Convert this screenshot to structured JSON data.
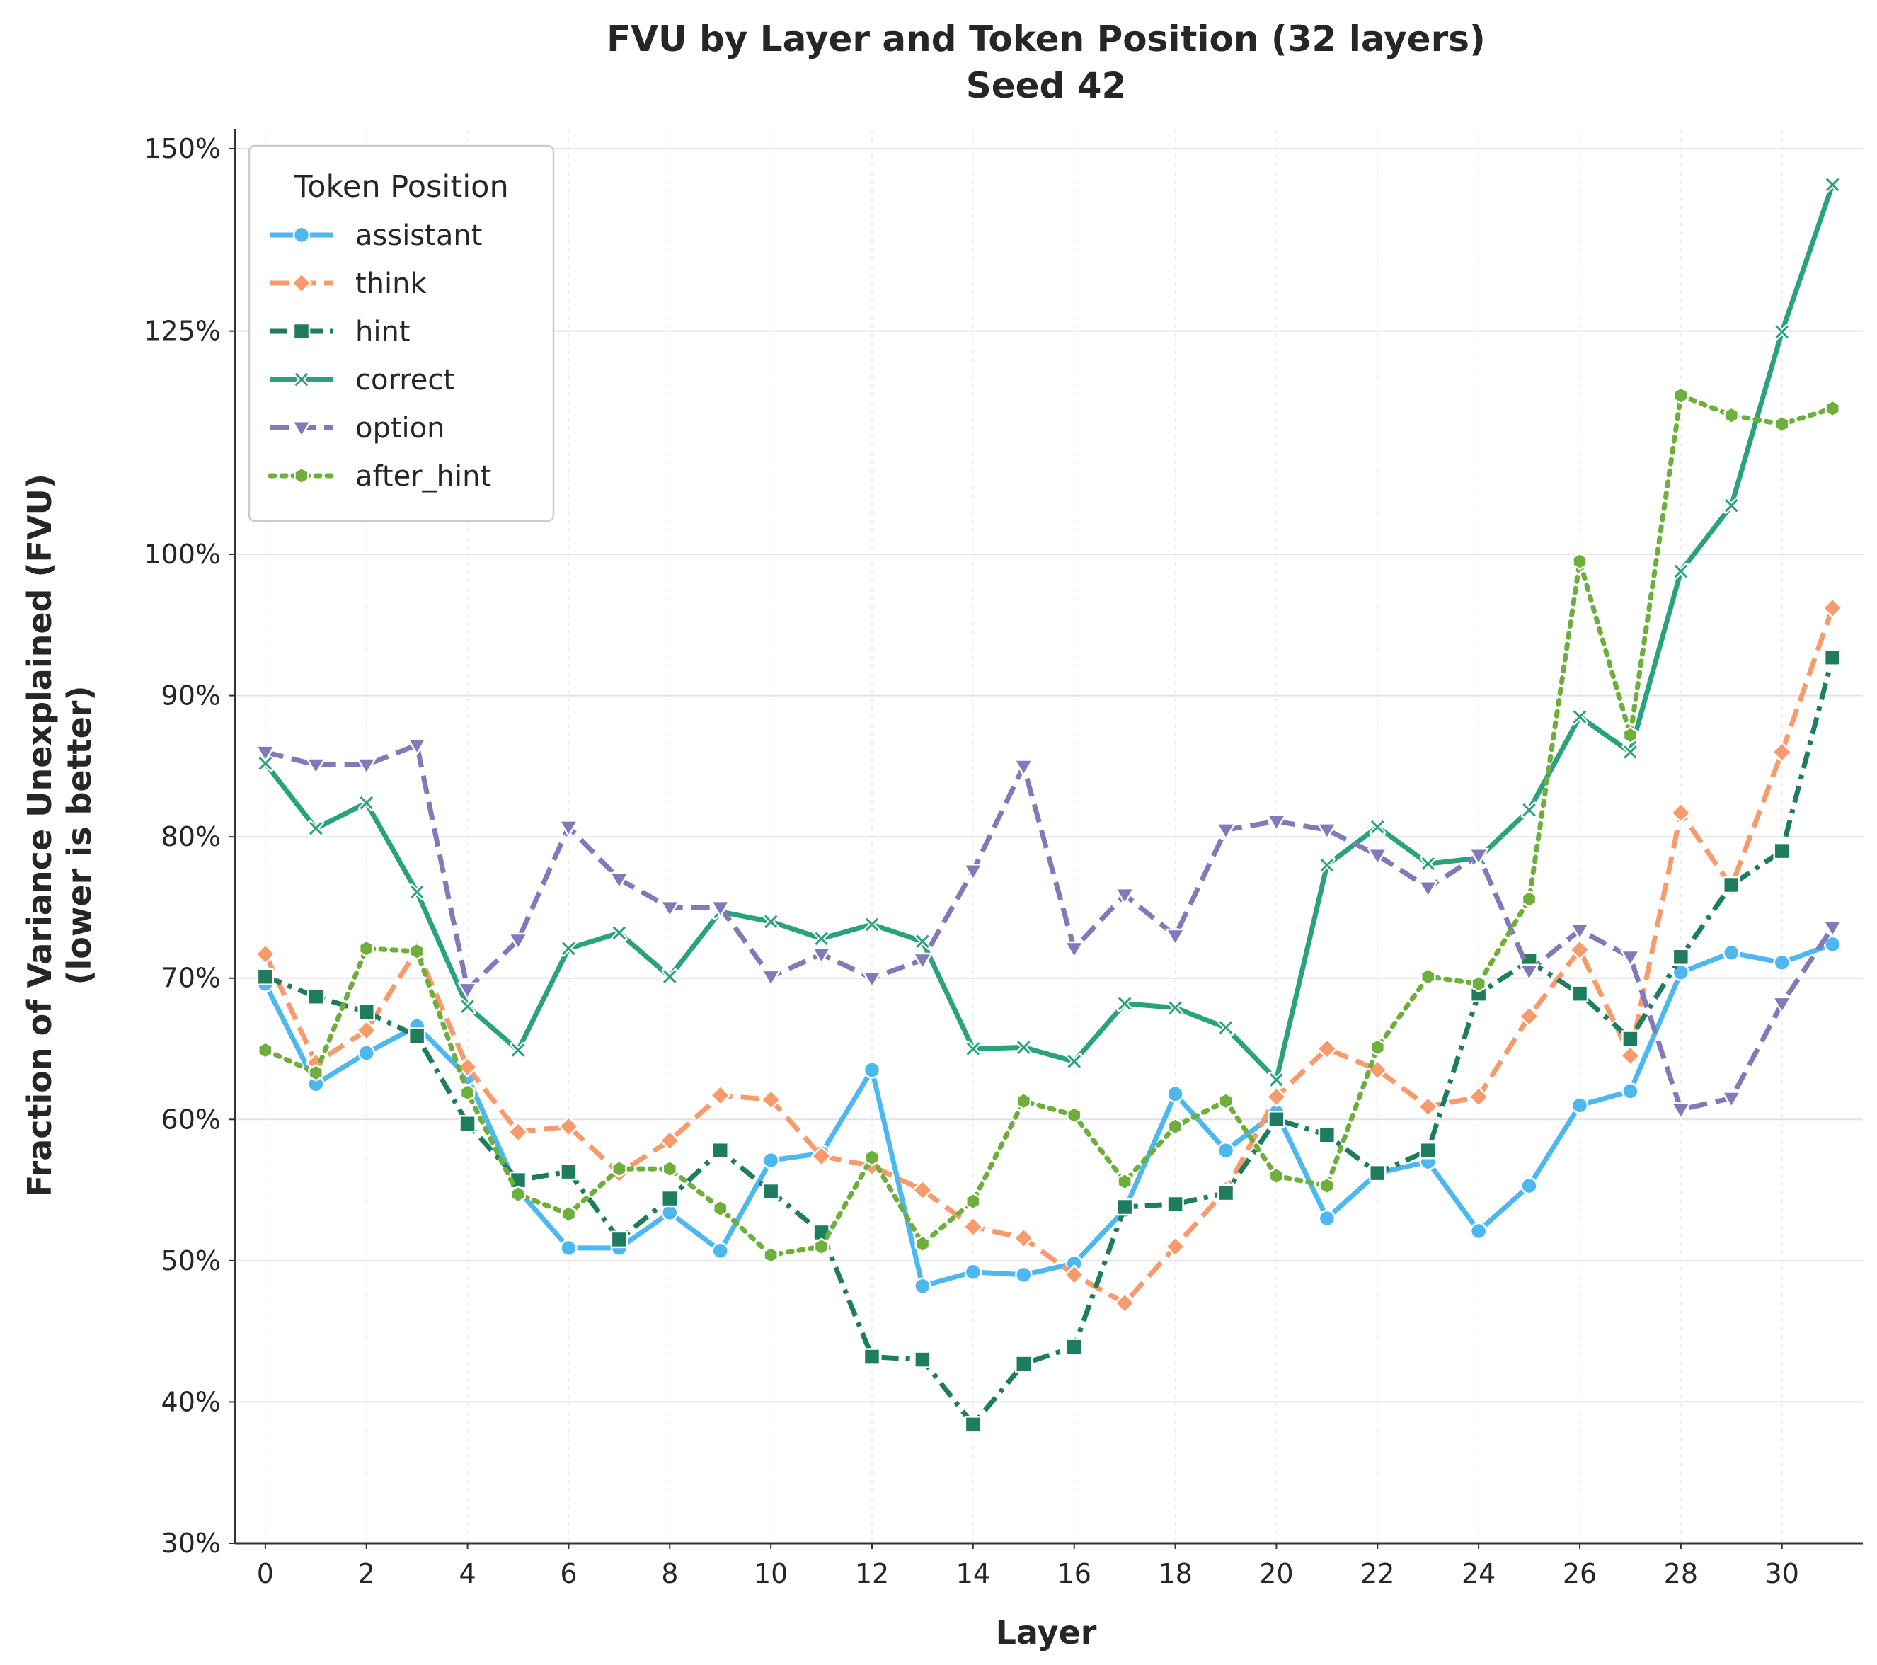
{
  "chart_data": {
    "type": "line",
    "title": "FVU by Layer and Token Position (32 layers)",
    "subtitle": "Seed 42",
    "xlabel": "Layer",
    "ylabel": "Fraction of Variance Unexplained (FVU)",
    "ylabel_sub": "(lower is better)",
    "x": [
      0,
      1,
      2,
      3,
      4,
      5,
      6,
      7,
      8,
      9,
      10,
      11,
      12,
      13,
      14,
      15,
      16,
      17,
      18,
      19,
      20,
      21,
      22,
      23,
      24,
      25,
      26,
      27,
      28,
      29,
      30,
      31
    ],
    "x_ticks": [
      0,
      2,
      4,
      6,
      8,
      10,
      12,
      14,
      16,
      18,
      20,
      22,
      24,
      26,
      28,
      30
    ],
    "x_tick_labels": [
      "0",
      "2",
      "4",
      "6",
      "8",
      "10",
      "12",
      "14",
      "16",
      "18",
      "20",
      "22",
      "24",
      "26",
      "28",
      "30"
    ],
    "xlim": [
      -0.6,
      31.6
    ],
    "y_scale": "symlog-like (compressed above 100%)",
    "y_ticks": [
      30,
      40,
      50,
      60,
      70,
      80,
      90,
      100,
      125,
      150
    ],
    "y_tick_labels": [
      "30%",
      "40%",
      "50%",
      "60%",
      "70%",
      "80%",
      "90%",
      "100%",
      "125%",
      "150%"
    ],
    "ylim": [
      30,
      150
    ],
    "grid": true,
    "legend": {
      "title": "Token Position",
      "position": "top-left"
    },
    "series": [
      {
        "name": "assistant",
        "color": "#4db8f0",
        "marker": "circle",
        "dash": "solid",
        "values": [
          69.6,
          62.5,
          64.7,
          66.6,
          63.0,
          55.0,
          50.9,
          50.9,
          53.4,
          50.7,
          57.1,
          57.6,
          63.5,
          48.2,
          49.2,
          49.0,
          49.8,
          53.6,
          61.8,
          57.8,
          60.5,
          53.0,
          56.2,
          57.0,
          52.1,
          55.3,
          61.0,
          62.0,
          70.4,
          71.8,
          71.1,
          72.4
        ]
      },
      {
        "name": "think",
        "color": "#f89b6c",
        "marker": "diamond",
        "dash": "dashed",
        "values": [
          71.7,
          64.0,
          66.3,
          72.0,
          63.7,
          59.1,
          59.5,
          56.2,
          58.5,
          61.7,
          61.4,
          57.4,
          56.7,
          55.0,
          52.4,
          51.6,
          49.0,
          47.0,
          51.0,
          55.0,
          61.6,
          65.0,
          63.5,
          60.9,
          61.6,
          67.3,
          72.0,
          64.5,
          81.7,
          76.5,
          86.0,
          96.2
        ]
      },
      {
        "name": "hint",
        "color": "#1e7d5e",
        "marker": "square",
        "dash": "dashdot",
        "values": [
          70.1,
          68.7,
          67.6,
          65.9,
          59.7,
          55.7,
          56.3,
          51.5,
          54.4,
          57.8,
          54.9,
          52.0,
          43.2,
          43.0,
          38.4,
          42.7,
          43.9,
          53.8,
          54.0,
          54.8,
          60.0,
          58.9,
          56.2,
          57.8,
          68.9,
          71.2,
          68.9,
          65.7,
          71.5,
          76.6,
          79.0,
          92.7
        ]
      },
      {
        "name": "correct",
        "color": "#2aa37d",
        "marker": "x",
        "dash": "solid",
        "values": [
          85.2,
          80.6,
          82.4,
          76.1,
          68.0,
          64.9,
          72.1,
          73.2,
          70.1,
          74.7,
          74.0,
          72.8,
          73.8,
          72.6,
          65.0,
          65.1,
          64.1,
          68.2,
          67.9,
          66.5,
          62.8,
          78.0,
          80.7,
          78.1,
          78.5,
          81.9,
          88.5,
          86.0,
          98.8,
          105.0,
          124.9,
          144.7
        ]
      },
      {
        "name": "option",
        "color": "#8079ba",
        "marker": "triangle-down",
        "dash": "dashed",
        "values": [
          86.0,
          85.1,
          85.1,
          86.5,
          69.2,
          72.7,
          80.7,
          77.0,
          75.0,
          75.0,
          70.1,
          71.7,
          70.0,
          71.3,
          77.6,
          85.0,
          72.1,
          75.9,
          73.0,
          80.5,
          81.1,
          80.5,
          78.7,
          76.4,
          78.7,
          70.5,
          73.4,
          71.5,
          60.7,
          61.5,
          68.2,
          73.6
        ]
      },
      {
        "name": "after_hint",
        "color": "#6daf3a",
        "marker": "hexagon",
        "dash": "dotted",
        "values": [
          64.9,
          63.3,
          72.1,
          71.9,
          61.9,
          54.7,
          53.3,
          56.5,
          56.5,
          53.7,
          50.4,
          51.0,
          57.3,
          51.2,
          54.2,
          61.3,
          60.3,
          55.6,
          59.5,
          61.3,
          56.0,
          55.3,
          65.1,
          70.1,
          69.6,
          75.6,
          99.5,
          87.2,
          117.2,
          114.9,
          113.9,
          115.7
        ]
      }
    ]
  }
}
